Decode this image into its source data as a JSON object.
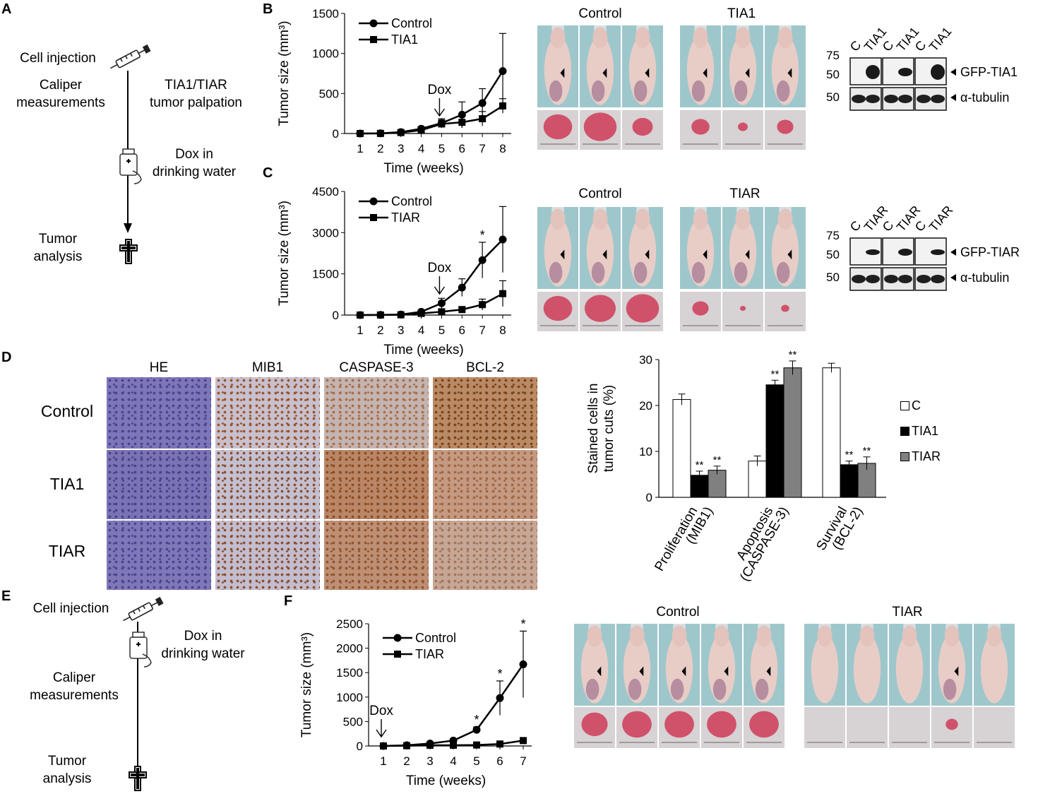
{
  "panel_labels": {
    "A": "A",
    "B": "B",
    "C": "C",
    "D": "D",
    "E": "E",
    "F": "F"
  },
  "panelA": {
    "cell_injection": "Cell injection",
    "caliper": [
      "Caliper",
      "measurements"
    ],
    "palpation": [
      "TIA1/TIAR",
      "tumor palpation"
    ],
    "dox": [
      "Dox in",
      "drinking water"
    ],
    "analysis": [
      "Tumor",
      "analysis"
    ]
  },
  "panelE": {
    "cell_injection": "Cell injection",
    "dox": [
      "Dox in",
      "drinking water"
    ],
    "caliper": [
      "Caliper",
      "measurements"
    ],
    "analysis": [
      "Tumor",
      "analysis"
    ]
  },
  "photo_labels": {
    "B_control": "Control",
    "B_tia1": "TIA1",
    "C_control": "Control",
    "C_tiar": "TIAR",
    "F_control": "Control",
    "F_tiar": "TIAR"
  },
  "westernB": {
    "lanes": [
      "C",
      "TIA1",
      "C",
      "TIA1",
      "C",
      "TIA1"
    ],
    "mw": [
      "75",
      "50",
      "50"
    ],
    "bands": [
      "GFP-TIA1",
      "α-tubulin"
    ]
  },
  "westernC": {
    "lanes": [
      "C",
      "TIAR",
      "C",
      "TIAR",
      "C",
      "TIAR"
    ],
    "mw": [
      "75",
      "50",
      "50"
    ],
    "bands": [
      "GFP-TIAR",
      "α-tubulin"
    ]
  },
  "panelD": {
    "columns": [
      "HE",
      "MIB1",
      "CASPASE-3",
      "BCL-2"
    ],
    "rows": [
      "Control",
      "TIA1",
      "TIAR"
    ]
  },
  "chart_data": [
    {
      "id": "B",
      "type": "line",
      "x": [
        1,
        2,
        3,
        4,
        5,
        6,
        7,
        8
      ],
      "series": [
        {
          "name": "Control",
          "marker": "circle",
          "values": [
            0,
            2,
            18,
            60,
            130,
            235,
            380,
            780
          ],
          "err": [
            0,
            2,
            8,
            25,
            55,
            160,
            180,
            470
          ]
        },
        {
          "name": "TIA1",
          "marker": "square",
          "values": [
            0,
            1,
            12,
            42,
            120,
            140,
            185,
            345
          ],
          "err": [
            0,
            1,
            6,
            20,
            50,
            70,
            90,
            90
          ]
        }
      ],
      "xlabel": "Time (weeks)",
      "ylabel": "Tumor size (mm³)",
      "ylim": [
        0,
        1500
      ],
      "yticks": [
        "0",
        "500",
        "1000",
        "1500"
      ],
      "annotation": "Dox",
      "annotation_x": 5,
      "stars": []
    },
    {
      "id": "C",
      "type": "line",
      "x": [
        1,
        2,
        3,
        4,
        5,
        6,
        7,
        8
      ],
      "series": [
        {
          "name": "Control",
          "marker": "circle",
          "values": [
            0,
            5,
            20,
            120,
            430,
            1000,
            2000,
            2750
          ],
          "err": [
            0,
            5,
            15,
            60,
            180,
            320,
            650,
            1200
          ]
        },
        {
          "name": "TIAR",
          "marker": "square",
          "values": [
            0,
            3,
            10,
            60,
            120,
            200,
            380,
            780
          ],
          "err": [
            0,
            3,
            8,
            30,
            60,
            90,
            200,
            470
          ]
        }
      ],
      "xlabel": "Time (weeks)",
      "ylabel": "Tumor size (mm³)",
      "ylim": [
        0,
        4500
      ],
      "yticks": [
        "0",
        "1500",
        "3000",
        "4500"
      ],
      "annotation": "Dox",
      "annotation_x": 5,
      "stars": [
        {
          "x": 7,
          "y": 2650,
          "text": "*"
        }
      ]
    },
    {
      "id": "F",
      "type": "line",
      "x": [
        1,
        2,
        3,
        4,
        5,
        6,
        7
      ],
      "series": [
        {
          "name": "Control",
          "marker": "circle",
          "values": [
            0,
            15,
            50,
            110,
            330,
            980,
            1670
          ],
          "err": [
            0,
            10,
            25,
            40,
            60,
            350,
            680
          ]
        },
        {
          "name": "TIAR",
          "marker": "square",
          "values": [
            0,
            5,
            15,
            15,
            20,
            40,
            110
          ],
          "err": [
            0,
            5,
            10,
            10,
            10,
            20,
            60
          ]
        }
      ],
      "xlabel": "Time (weeks)",
      "ylabel": "Tumor size (mm³)",
      "ylim": [
        0,
        2500
      ],
      "yticks": [
        "0",
        "500",
        "1000",
        "1500",
        "2000",
        "2500"
      ],
      "annotation": "Dox",
      "annotation_x": 1,
      "stars": [
        {
          "x": 5,
          "y": 390,
          "text": "*"
        },
        {
          "x": 6,
          "y": 1330,
          "text": "*"
        },
        {
          "x": 7,
          "y": 2350,
          "text": "*"
        }
      ]
    },
    {
      "id": "D",
      "type": "bar",
      "categories": [
        "Proliferation\n(MIB1)",
        "Apoptosis\n(CASPASE-3)",
        "Survival\n(BCL-2)"
      ],
      "series": [
        {
          "name": "C",
          "color": "#ffffff",
          "values": [
            21.3,
            7.9,
            28.2
          ],
          "err": [
            1.2,
            1.1,
            1.0
          ],
          "stars": [
            "",
            "",
            ""
          ]
        },
        {
          "name": "TIA1",
          "color": "#000000",
          "values": [
            4.8,
            24.5,
            7.1
          ],
          "err": [
            0.9,
            1.0,
            0.8
          ],
          "stars": [
            "**",
            "**",
            "**"
          ]
        },
        {
          "name": "TIAR",
          "color": "#808080",
          "values": [
            5.9,
            28.2,
            7.4
          ],
          "err": [
            0.9,
            1.5,
            1.4
          ],
          "stars": [
            "**",
            "**",
            "**"
          ]
        }
      ],
      "ylabel": "Stained cells in\ntumor cuts (%)",
      "ylim": [
        0,
        30
      ],
      "yticks": [
        "0",
        "10",
        "20",
        "30"
      ],
      "legend": "right"
    }
  ]
}
